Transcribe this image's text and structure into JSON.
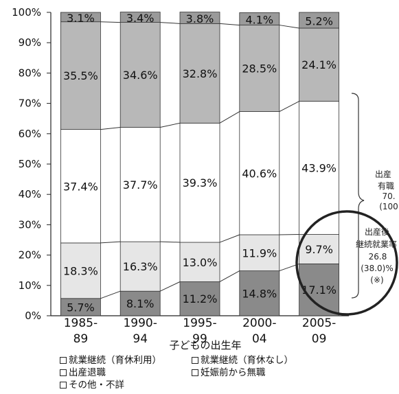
{
  "chart_data": {
    "type": "bar",
    "stacked": true,
    "categories": [
      "1985-\n89",
      "1990-\n94",
      "1995-\n99",
      "2000-\n04",
      "2005-\n09"
    ],
    "xlabel": "子どもの出生年",
    "ylim": [
      0,
      100
    ],
    "y_ticks": [
      "0%",
      "10%",
      "20%",
      "30%",
      "40%",
      "50%",
      "60%",
      "70%",
      "80%",
      "90%",
      "100%"
    ],
    "series": [
      {
        "name": "就業継続（育休利用）",
        "values": [
          5.7,
          8.1,
          11.2,
          14.8,
          17.1
        ],
        "color": "#8a8a8a",
        "labels": [
          "5.7%",
          "8.1%",
          "11.2%",
          "14.8%",
          "17.1%"
        ]
      },
      {
        "name": "就業継続（育休なし）",
        "values": [
          18.3,
          16.3,
          13.0,
          11.9,
          9.7
        ],
        "color": "#e6e6e6",
        "labels": [
          "18.3%",
          "16.3%",
          "13.0%",
          "11.9%",
          "9.7%"
        ]
      },
      {
        "name": "出産退職",
        "values": [
          37.4,
          37.7,
          39.3,
          40.6,
          43.9
        ],
        "color": "#ffffff",
        "labels": [
          "37.4%",
          "37.7%",
          "39.3%",
          "40.6%",
          "43.9%"
        ]
      },
      {
        "name": "妊娠前から無職",
        "values": [
          35.5,
          34.6,
          32.8,
          28.5,
          24.1
        ],
        "color": "#b8b8b8",
        "labels": [
          "35.5%",
          "34.6%",
          "32.8%",
          "28.5%",
          "24.1%"
        ]
      },
      {
        "name": "その他・不詳",
        "values": [
          3.1,
          3.4,
          3.8,
          4.1,
          5.2
        ],
        "color": "#9a9a9a",
        "labels": [
          "3.1%",
          "3.4%",
          "3.8%",
          "4.1%",
          "5.2%"
        ]
      }
    ],
    "legend": [
      [
        "就業継続（育休利用）",
        "就業継続（育休なし）"
      ],
      [
        "出産退職",
        "妊娠前から無職"
      ],
      [
        "その他・不詳"
      ]
    ],
    "legend_position": "bottom",
    "annotations": {
      "right_brace": [
        "出産",
        "有職",
        "70.",
        "(100"
      ],
      "circle": [
        "出産後",
        "継続就業率",
        "26.8",
        "(38.0)%",
        "(※)"
      ]
    },
    "grid": false
  }
}
